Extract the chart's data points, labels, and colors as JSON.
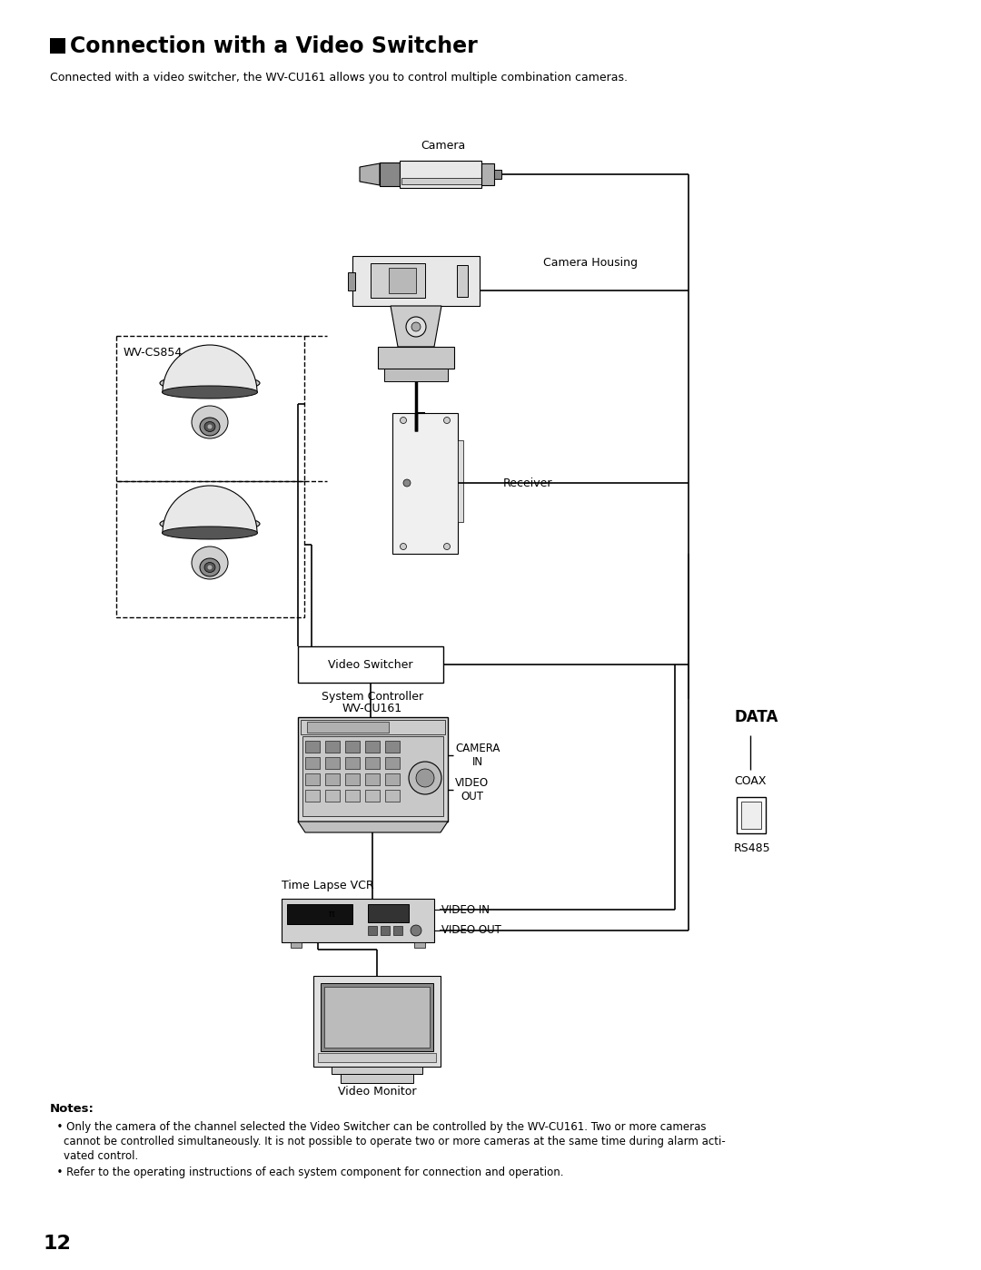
{
  "title": "Connection with a Video Switcher",
  "subtitle": "Connected with a video switcher, the WV-CU161 allows you to control multiple combination cameras.",
  "page_number": "12",
  "bg_color": "#ffffff",
  "notes_header": "Notes:",
  "note1_line1": "  • Only the camera of the channel selected the Video Switcher can be controlled by the WV-CU161. Two or more cameras",
  "note1_line2": "    cannot be controlled simultaneously. It is not possible to operate two or more cameras at the same time during alarm acti-",
  "note1_line3": "    vated control.",
  "note2": "  • Refer to the operating instructions of each system component for connection and operation.",
  "lbl_camera": "Camera",
  "lbl_camera_housing": "Camera Housing",
  "lbl_receiver": "Receiver",
  "lbl_wvcs854": "WV-CS854",
  "lbl_video_switcher": "Video Switcher",
  "lbl_sys_ctrl1": "System Controller",
  "lbl_sys_ctrl2": "WV-CU161",
  "lbl_camera_in": "CAMERA\nIN",
  "lbl_video_out_ctrl": "VIDEO\nOUT",
  "lbl_time_lapse": "Time Lapse VCR",
  "lbl_video_in": "VIDEO IN",
  "lbl_video_out2": "VIDEO OUT",
  "lbl_video_monitor": "Video Monitor",
  "lbl_data": "DATA",
  "lbl_coax": "COAX",
  "lbl_rs485": "RS485"
}
